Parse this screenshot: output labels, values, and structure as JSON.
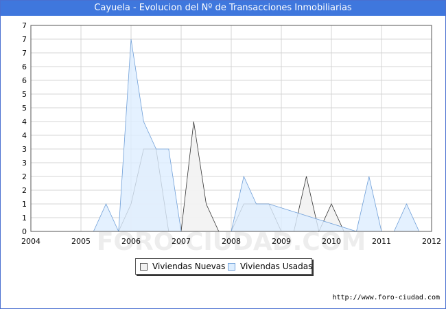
{
  "title": "Cayuela - Evolucion del Nº de Transacciones Inmobiliarias",
  "watermark": "FORO-CIUDAD.COM",
  "source_url": "http://www.foro-ciudad.com",
  "colors": {
    "title_bar": "#3f77dd",
    "nuevas_fill": "#f2f2f2",
    "nuevas_line": "#333333",
    "usadas_fill": "#ddeeff",
    "usadas_line": "#6f9fd8",
    "grid": "#d4d4d4"
  },
  "chart_data": {
    "type": "area",
    "title": "Cayuela - Evolucion del Nº de Transacciones Inmobiliarias",
    "xlabel": "",
    "ylabel": "",
    "xlim": [
      2004,
      2012
    ],
    "ylim": [
      0,
      7.5
    ],
    "grid": true,
    "legend_position": "bottom",
    "x_ticks": [
      2004,
      2005,
      2006,
      2007,
      2008,
      2009,
      2010,
      2011,
      2012
    ],
    "x_tick_labels": [
      "2004",
      "2005",
      "2006",
      "2007",
      "2008",
      "2009",
      "2010",
      "2011",
      "2012"
    ],
    "y_ticks": [
      0,
      0.5,
      1,
      1.5,
      2,
      2.5,
      3,
      3.5,
      4,
      4.5,
      5,
      5.5,
      6,
      6.5,
      7,
      7.5
    ],
    "y_tick_labels": [
      "0",
      "1",
      "1",
      "2",
      "2",
      "3",
      "3",
      "4",
      "4",
      "5",
      "5",
      "6",
      "6",
      "7",
      "7",
      "7"
    ],
    "series": [
      {
        "name": "Viviendas Nuevas",
        "x": [
          2004,
          2005.75,
          2006,
          2006.25,
          2006.5,
          2006.75,
          2007,
          2007.25,
          2007.5,
          2007.75,
          2008,
          2008.25,
          2008.5,
          2008.75,
          2009,
          2009.25,
          2009.5,
          2009.75,
          2010,
          2010.25,
          2010.5,
          2012
        ],
        "values": [
          0,
          0,
          1,
          3,
          3,
          0,
          0,
          4,
          1,
          0,
          0,
          1,
          1,
          1,
          0,
          0,
          2,
          0,
          1,
          0,
          0,
          0
        ]
      },
      {
        "name": "Viviendas Usadas",
        "x": [
          2004,
          2005.25,
          2005.5,
          2005.75,
          2006,
          2006.25,
          2006.5,
          2006.75,
          2007,
          2008,
          2008.25,
          2008.5,
          2008.75,
          2010.5,
          2010.75,
          2011,
          2011.25,
          2011.5,
          2011.75,
          2012
        ],
        "values": [
          0,
          0,
          1,
          0,
          7,
          4,
          3,
          3,
          0,
          0,
          2,
          1,
          1,
          0,
          2,
          0,
          0,
          1,
          0,
          0
        ]
      }
    ]
  },
  "legend": {
    "items": [
      {
        "label": "Viviendas Nuevas"
      },
      {
        "label": "Viviendas Usadas"
      }
    ]
  }
}
